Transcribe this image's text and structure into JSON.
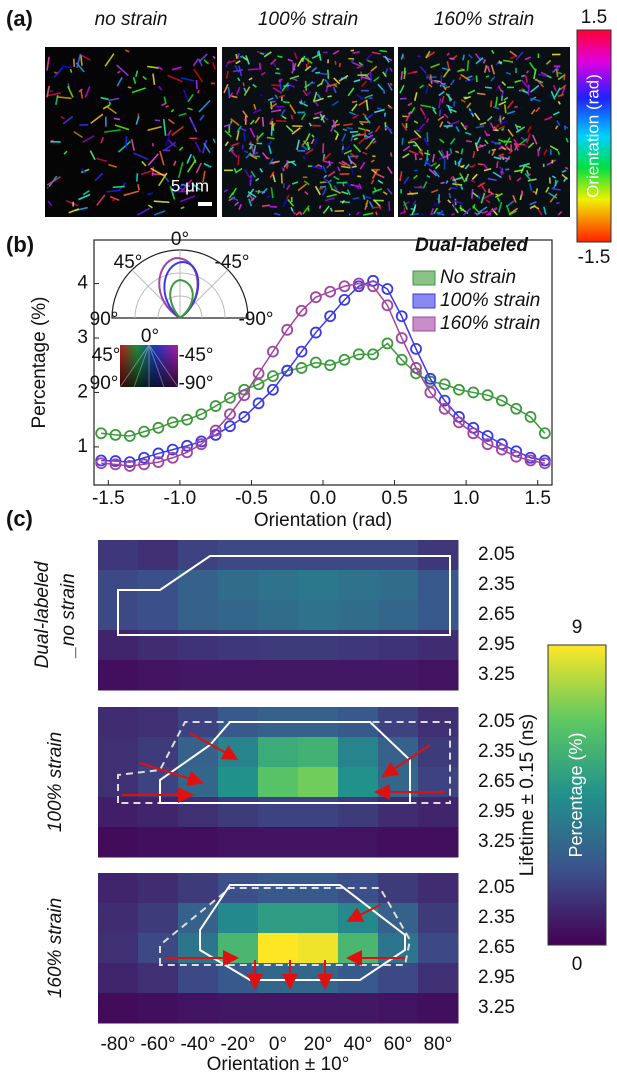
{
  "panel_labels": [
    "(a)",
    "(b)",
    "(c)"
  ],
  "images": {
    "titles": [
      "no strain",
      "100% strain",
      "160% strain"
    ],
    "scale_bar": "5 μm",
    "colorbar": {
      "label": "Orientation (rad)",
      "ticks": [
        1.5,
        -1.5
      ]
    }
  },
  "chart_data": [
    {
      "type": "line",
      "xlabel": "Orientation (rad)",
      "ylabel": "Percentage (%)",
      "legend_title": "Dual-labeled",
      "x": [
        -1.55,
        -1.45,
        -1.35,
        -1.25,
        -1.15,
        -1.05,
        -0.95,
        -0.85,
        -0.75,
        -0.65,
        -0.55,
        -0.45,
        -0.35,
        -0.25,
        -0.15,
        -0.05,
        0.05,
        0.15,
        0.25,
        0.35,
        0.45,
        0.55,
        0.65,
        0.75,
        0.85,
        0.95,
        1.05,
        1.15,
        1.25,
        1.35,
        1.45,
        1.55
      ],
      "series": [
        {
          "name": "No strain",
          "color": "#3c9a3c",
          "values": [
            1.25,
            1.22,
            1.2,
            1.28,
            1.35,
            1.45,
            1.5,
            1.6,
            1.75,
            1.9,
            2.05,
            2.15,
            2.3,
            2.4,
            2.45,
            2.55,
            2.5,
            2.6,
            2.7,
            2.7,
            2.9,
            2.6,
            2.35,
            2.2,
            2.15,
            2.05,
            2.0,
            1.95,
            1.85,
            1.7,
            1.55,
            1.25
          ]
        },
        {
          "name": "100% strain",
          "color": "#3a3ae6",
          "values": [
            0.75,
            0.74,
            0.72,
            0.8,
            0.88,
            0.95,
            1.02,
            1.1,
            1.22,
            1.38,
            1.55,
            1.8,
            2.05,
            2.4,
            2.75,
            3.1,
            3.4,
            3.7,
            3.95,
            4.05,
            3.9,
            3.4,
            2.8,
            2.25,
            1.85,
            1.55,
            1.35,
            1.2,
            1.05,
            0.92,
            0.8,
            0.75
          ]
        },
        {
          "name": "160% strain",
          "color": "#a244a2",
          "values": [
            0.7,
            0.68,
            0.65,
            0.68,
            0.72,
            0.8,
            0.9,
            1.05,
            1.3,
            1.6,
            1.95,
            2.35,
            2.75,
            3.15,
            3.5,
            3.75,
            3.85,
            3.95,
            4.0,
            3.95,
            3.6,
            3.0,
            2.45,
            2.0,
            1.7,
            1.45,
            1.25,
            1.05,
            0.95,
            0.82,
            0.75,
            0.7
          ]
        }
      ],
      "xlim": [
        -1.6,
        1.6
      ],
      "ylim": [
        0.3,
        4.8
      ],
      "xticks": [
        -1.5,
        {
          "value": -1,
          "label": "-1.0"
        },
        -0.5,
        {
          "value": 0,
          "label": "0.0"
        },
        0.5,
        {
          "value": 1,
          "label": "1.0"
        },
        1.5
      ],
      "yticks": [
        1,
        2,
        3,
        4
      ],
      "polar_inset_labels": [
        "0°",
        "45°",
        "-45°",
        "90°",
        "-90°"
      ],
      "wheel_inset_labels": [
        "0°",
        "45°",
        "-45°",
        "90°",
        "-90°"
      ]
    },
    {
      "type": "heatmap",
      "title": [
        "Dual-labeled",
        "_no strain"
      ],
      "rows": [
        2.05,
        2.35,
        2.65,
        2.95,
        3.25
      ],
      "values": [
        [
          1.5,
          1.3,
          1.8,
          2.0,
          2.0,
          2.0,
          2.0,
          2.0,
          1.5
        ],
        [
          2.0,
          2.2,
          2.8,
          3.2,
          3.4,
          3.6,
          3.4,
          3.2,
          2.5
        ],
        [
          2.0,
          2.2,
          2.8,
          3.0,
          3.2,
          3.4,
          3.2,
          3.0,
          2.5
        ],
        [
          1.0,
          1.2,
          1.4,
          1.5,
          1.6,
          1.6,
          1.5,
          1.4,
          1.2
        ],
        [
          0.4,
          0.5,
          0.6,
          0.6,
          0.6,
          0.6,
          0.6,
          0.6,
          0.5
        ]
      ]
    },
    {
      "type": "heatmap",
      "title": [
        "100% strain"
      ],
      "rows": [
        2.05,
        2.35,
        2.65,
        2.95,
        3.25
      ],
      "values": [
        [
          1.2,
          1.3,
          1.8,
          2.5,
          2.8,
          2.8,
          2.5,
          1.8,
          1.3
        ],
        [
          1.3,
          1.6,
          2.8,
          4.0,
          5.5,
          5.8,
          4.0,
          2.8,
          1.6
        ],
        [
          1.3,
          1.8,
          3.0,
          4.5,
          6.5,
          7.0,
          4.5,
          3.0,
          1.8
        ],
        [
          0.8,
          1.0,
          1.3,
          1.6,
          1.8,
          1.8,
          1.6,
          1.2,
          1.0
        ],
        [
          0.3,
          0.4,
          0.4,
          0.5,
          0.5,
          0.5,
          0.5,
          0.4,
          0.4
        ]
      ]
    },
    {
      "type": "heatmap",
      "title": [
        "160% strain"
      ],
      "rows": [
        2.05,
        2.35,
        2.65,
        2.95,
        3.25
      ],
      "values": [
        [
          1.0,
          1.2,
          1.6,
          2.2,
          2.5,
          2.5,
          2.2,
          1.6,
          1.2
        ],
        [
          1.2,
          1.6,
          2.8,
          4.2,
          5.0,
          5.0,
          4.2,
          2.8,
          1.6
        ],
        [
          1.3,
          2.0,
          3.5,
          6.0,
          9.0,
          8.8,
          6.0,
          3.5,
          2.0
        ],
        [
          1.0,
          1.3,
          2.0,
          2.5,
          3.0,
          3.0,
          2.5,
          2.0,
          1.3
        ],
        [
          0.3,
          0.4,
          0.5,
          0.6,
          0.6,
          0.6,
          0.6,
          0.5,
          0.4
        ]
      ],
      "columns": [
        "-80°",
        "-60°",
        "-40°",
        "-20°",
        "0°",
        "20°",
        "40°",
        "60°",
        "80°"
      ],
      "xlabel": "Orientation ± 10°"
    }
  ],
  "heatmap_colorbar": {
    "label": "Percentage (%)",
    "axis_label": "Lifetime ± 0.15 (ns)",
    "zlim": [
      0,
      9
    ],
    "ticks": [
      0,
      9
    ]
  }
}
